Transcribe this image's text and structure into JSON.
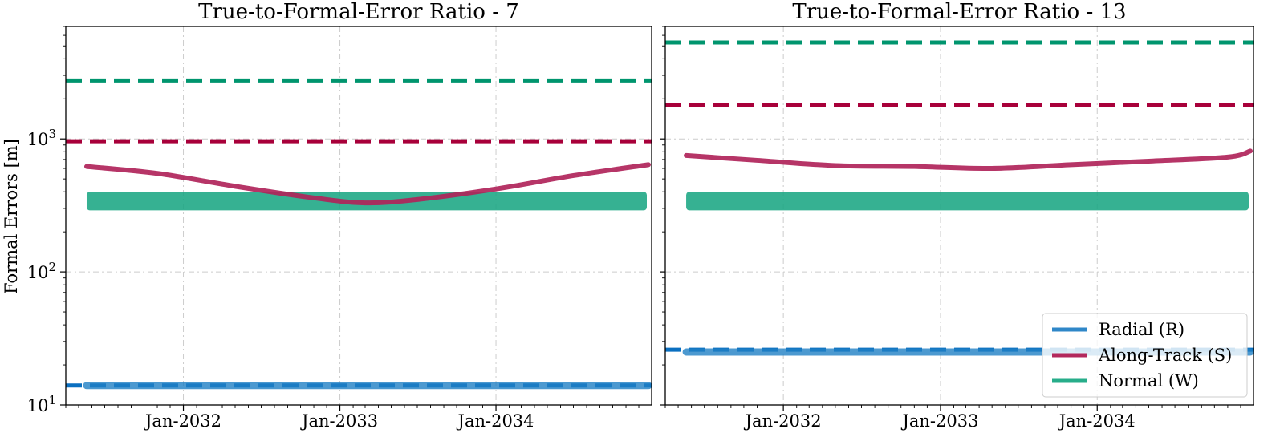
{
  "colors": {
    "radial": "#1f7fc4",
    "along_track": "#b0245a",
    "normal": "#1aa683",
    "radial_dashed": "#0a6fc0",
    "along_track_dashed": "#a8003a",
    "normal_dashed": "#00956e"
  },
  "shared_ylabel": "Formal Errors [m]",
  "legend": {
    "placement": "lower-right",
    "entries": [
      {
        "label": "Radial (R)",
        "color": "#2f87c8"
      },
      {
        "label": "Along-Track (S)",
        "color": "#b3285c"
      },
      {
        "label": "Normal (W)",
        "color": "#27ad8a"
      }
    ]
  },
  "chart_data": [
    {
      "type": "line",
      "title": "True-to-Formal-Error Ratio - 7",
      "xlabel": "",
      "ylabel": "Formal Errors [m]",
      "yscale": "log",
      "ylim": [
        10,
        7000
      ],
      "xlim": [
        "2031-04-01",
        "2034-12-31"
      ],
      "xticks": [
        "Jan-2032",
        "Jan-2033",
        "Jan-2034"
      ],
      "yticks": [
        "10^1",
        "10^2",
        "10^3"
      ],
      "grid": true,
      "series": [
        {
          "name": "Radial (R)",
          "style": "solid-thick",
          "x": [
            "2031-05-01",
            "2031-11-01",
            "2032-05-01",
            "2032-11-01",
            "2033-05-01",
            "2033-11-01",
            "2034-05-01",
            "2034-11-01",
            "2034-12-31"
          ],
          "values": [
            14,
            14,
            14,
            14,
            14,
            14,
            14,
            14,
            14
          ]
        },
        {
          "name": "Along-Track (S)",
          "style": "solid",
          "x": [
            "2031-05-01",
            "2031-11-01",
            "2032-05-01",
            "2032-11-01",
            "2033-03-01",
            "2033-07-01",
            "2034-01-01",
            "2034-07-01",
            "2034-12-31"
          ],
          "values": [
            620,
            550,
            440,
            360,
            330,
            350,
            420,
            530,
            640
          ]
        },
        {
          "name": "Normal (W)",
          "style": "band",
          "x": [
            "2031-05-01",
            "2034-12-31"
          ],
          "lower": [
            290,
            290
          ],
          "upper": [
            400,
            400
          ]
        }
      ],
      "reference_lines": [
        {
          "component": "Radial (R)",
          "value": 14
        },
        {
          "component": "Along-Track (S)",
          "value": 960
        },
        {
          "component": "Normal (W)",
          "value": 2750
        }
      ]
    },
    {
      "type": "line",
      "title": "True-to-Formal-Error Ratio - 13",
      "xlabel": "",
      "yscale": "log",
      "ylim": [
        10,
        7000
      ],
      "xlim": [
        "2031-04-01",
        "2034-12-31"
      ],
      "xticks": [
        "Jan-2032",
        "Jan-2033",
        "Jan-2034"
      ],
      "grid": true,
      "series": [
        {
          "name": "Radial (R)",
          "style": "solid-thick",
          "x": [
            "2031-05-01",
            "2031-11-01",
            "2032-05-01",
            "2032-11-01",
            "2033-05-01",
            "2033-11-01",
            "2034-05-01",
            "2034-11-01",
            "2034-12-31"
          ],
          "values": [
            25,
            25,
            25,
            25,
            25,
            25,
            25,
            25,
            25
          ]
        },
        {
          "name": "Along-Track (S)",
          "style": "solid",
          "x": [
            "2031-05-01",
            "2031-11-01",
            "2032-05-01",
            "2032-11-01",
            "2033-05-01",
            "2033-11-01",
            "2034-05-01",
            "2034-11-01",
            "2034-12-31"
          ],
          "values": [
            750,
            690,
            630,
            620,
            600,
            640,
            680,
            730,
            810
          ]
        },
        {
          "name": "Normal (W)",
          "style": "band",
          "x": [
            "2031-05-01",
            "2034-12-31"
          ],
          "lower": [
            290,
            290
          ],
          "upper": [
            400,
            400
          ]
        }
      ],
      "reference_lines": [
        {
          "component": "Radial (R)",
          "value": 26
        },
        {
          "component": "Along-Track (S)",
          "value": 1800
        },
        {
          "component": "Normal (W)",
          "value": 5300
        }
      ]
    }
  ]
}
